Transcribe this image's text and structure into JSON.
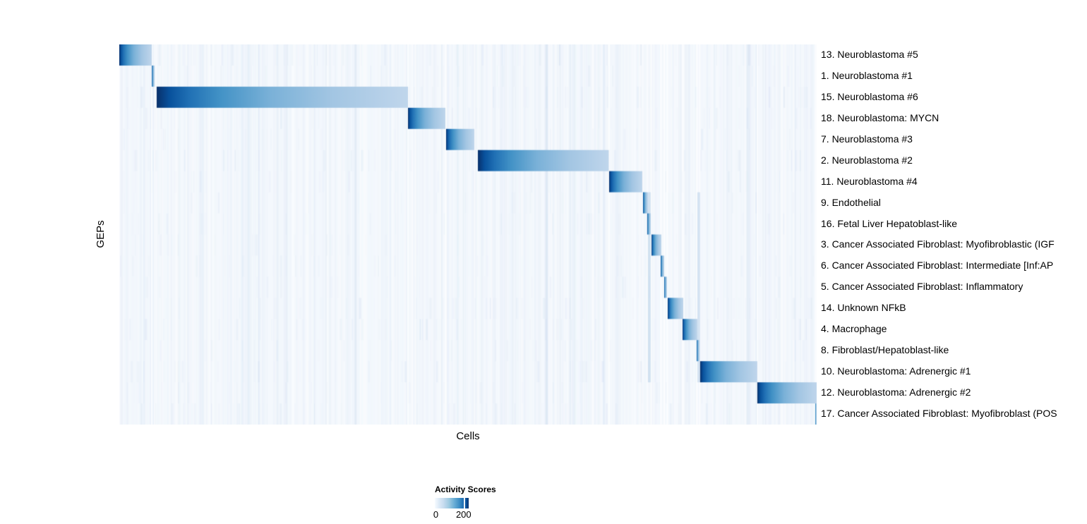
{
  "chart_data": {
    "type": "heatmap",
    "title": "",
    "xlabel": "Cells",
    "ylabel": "GEPs",
    "grid": false,
    "description": "Activity scores heatmap of 18 gene expression programs (GEPs, rows) across cells (columns). Cells are ordered by assigned GEP, producing a diagonal staircase of high-activity blocks; each block is darkest (~200+) at its left edge and decays rightward; background activity is near 0 with faint vertical cell-to-cell noise.",
    "colorscale": {
      "name": "Blues",
      "min": 0,
      "max": 200,
      "colors": [
        "#f7fbff",
        "#deebf7",
        "#c6dbef",
        "#9ecae1",
        "#6baed6",
        "#4292c6",
        "#2171b5",
        "#08519c",
        "#08306b"
      ]
    },
    "background_value": 0,
    "block_peak_value": 200,
    "rows": [
      {
        "label": "13. Neuroblastoma #5",
        "block_start": 0.0,
        "block_end": 0.0466,
        "noise": 0.55
      },
      {
        "label": "1. Neuroblastoma #1",
        "block_start": 0.0466,
        "block_end": 0.0506,
        "noise": 0.35
      },
      {
        "label": "15. Neuroblastoma #6",
        "block_start": 0.0536,
        "block_end": 0.414,
        "noise": 0.65
      },
      {
        "label": "18. Neuroblastoma: MYCN",
        "block_start": 0.414,
        "block_end": 0.4676,
        "noise": 0.45
      },
      {
        "label": "7. Neuroblastoma #3",
        "block_start": 0.4686,
        "block_end": 0.5091,
        "noise": 0.4
      },
      {
        "label": "2. Neuroblastoma #2",
        "block_start": 0.5142,
        "block_end": 0.7019,
        "noise": 0.6
      },
      {
        "label": "11. Neuroblastoma #4",
        "block_start": 0.7024,
        "block_end": 0.75,
        "noise": 0.45
      },
      {
        "label": "9. Endothelial",
        "block_start": 0.751,
        "block_end": 0.758,
        "noise": 0.35
      },
      {
        "label": "16. Fetal Liver Hepatoblast-like",
        "block_start": 0.757,
        "block_end": 0.7622,
        "noise": 0.4
      },
      {
        "label": "3. Cancer Associated Fibroblast: Myofibroblastic (IGF",
        "block_start": 0.7632,
        "block_end": 0.7773,
        "noise": 0.35
      },
      {
        "label": "6. Cancer Associated Fibroblast: Intermediate [Inf:AP",
        "block_start": 0.7763,
        "block_end": 0.7814,
        "noise": 0.4
      },
      {
        "label": "5. Cancer Associated Fibroblast: Inflammatory",
        "block_start": 0.7814,
        "block_end": 0.7854,
        "noise": 0.35
      },
      {
        "label": "14. Unknown NFkB",
        "block_start": 0.7864,
        "block_end": 0.8087,
        "noise": 0.55
      },
      {
        "label": "4. Macrophage",
        "block_start": 0.8077,
        "block_end": 0.8289,
        "noise": 0.55
      },
      {
        "label": "8. Fibroblast/Hepatoblast-like",
        "block_start": 0.8279,
        "block_end": 0.832,
        "noise": 0.5
      },
      {
        "label": "10. Neuroblastoma: Adrenergic #1",
        "block_start": 0.8329,
        "block_end": 0.9149,
        "noise": 0.55
      },
      {
        "label": "12. Neuroblastoma: Adrenergic #2",
        "block_start": 0.9149,
        "block_end": 1.0,
        "noise": 0.4
      },
      {
        "label": "17. Cancer Associated Fibroblast: Myofibroblast (POS",
        "block_start": 0.998,
        "block_end": 1.0,
        "noise": 0.55
      }
    ],
    "highlight_columns": [
      {
        "x": 0.758,
        "width": 0.004
      },
      {
        "x": 0.8289,
        "width": 0.004
      }
    ],
    "legend": {
      "title": "Activity Scores",
      "min_label": "0",
      "max_label": "200",
      "tick_fraction": 0.85,
      "position": "bottom"
    }
  }
}
